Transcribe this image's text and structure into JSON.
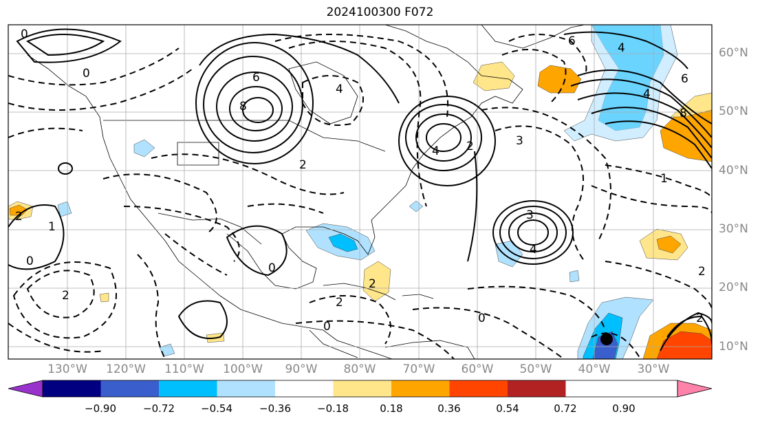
{
  "title": "2024100300 F072",
  "lat_labels": [
    "60°N",
    "50°N",
    "40°N",
    "30°N",
    "20°N",
    "10°N"
  ],
  "lon_labels": [
    "130°W",
    "120°W",
    "110°W",
    "100°W",
    "90°W",
    "80°W",
    "70°W",
    "60°W",
    "50°W",
    "40°W",
    "30°W"
  ],
  "colorbar": {
    "colors": [
      "#9932cc",
      "#000080",
      "#3a5fcd",
      "#00bfff",
      "#b0e2ff",
      "#ffffff",
      "#ffe68a",
      "#ffa500",
      "#ff4500",
      "#b22222",
      "#ff82ab"
    ],
    "tick_labels": [
      "−0.90",
      "−0.72",
      "−0.54",
      "−0.36",
      "−0.18",
      "0.18",
      "0.36",
      "0.54",
      "0.72",
      "0.90"
    ]
  },
  "contour_labels": {
    "ne_pacific_a": "0",
    "ne_pacific_b": "0",
    "great_lakes_high": "6",
    "great_lakes_high_b": "8",
    "central_us": "2",
    "hudson": "4",
    "w_atlantic": "4",
    "w_atlantic_b": "2",
    "subtropical_low": "3",
    "subtropical_low_b": "4",
    "n_atlantic": "6",
    "n_atlantic_b": "8",
    "n_atlantic_c": "4",
    "greenland": "6",
    "greenland_b": "4",
    "e_pacific_a": "1",
    "e_pacific_b": "0",
    "e_pacific_c": "2",
    "mexico": "0",
    "caribbean_a": "0",
    "caribbean_b": "2",
    "tropical_atl": "0",
    "tropical_atl_b": "2",
    "gulf": "2",
    "w_midlat": "2",
    "mid_atl": "3",
    "e_atl": "1",
    "e_atl_b": "2"
  }
}
